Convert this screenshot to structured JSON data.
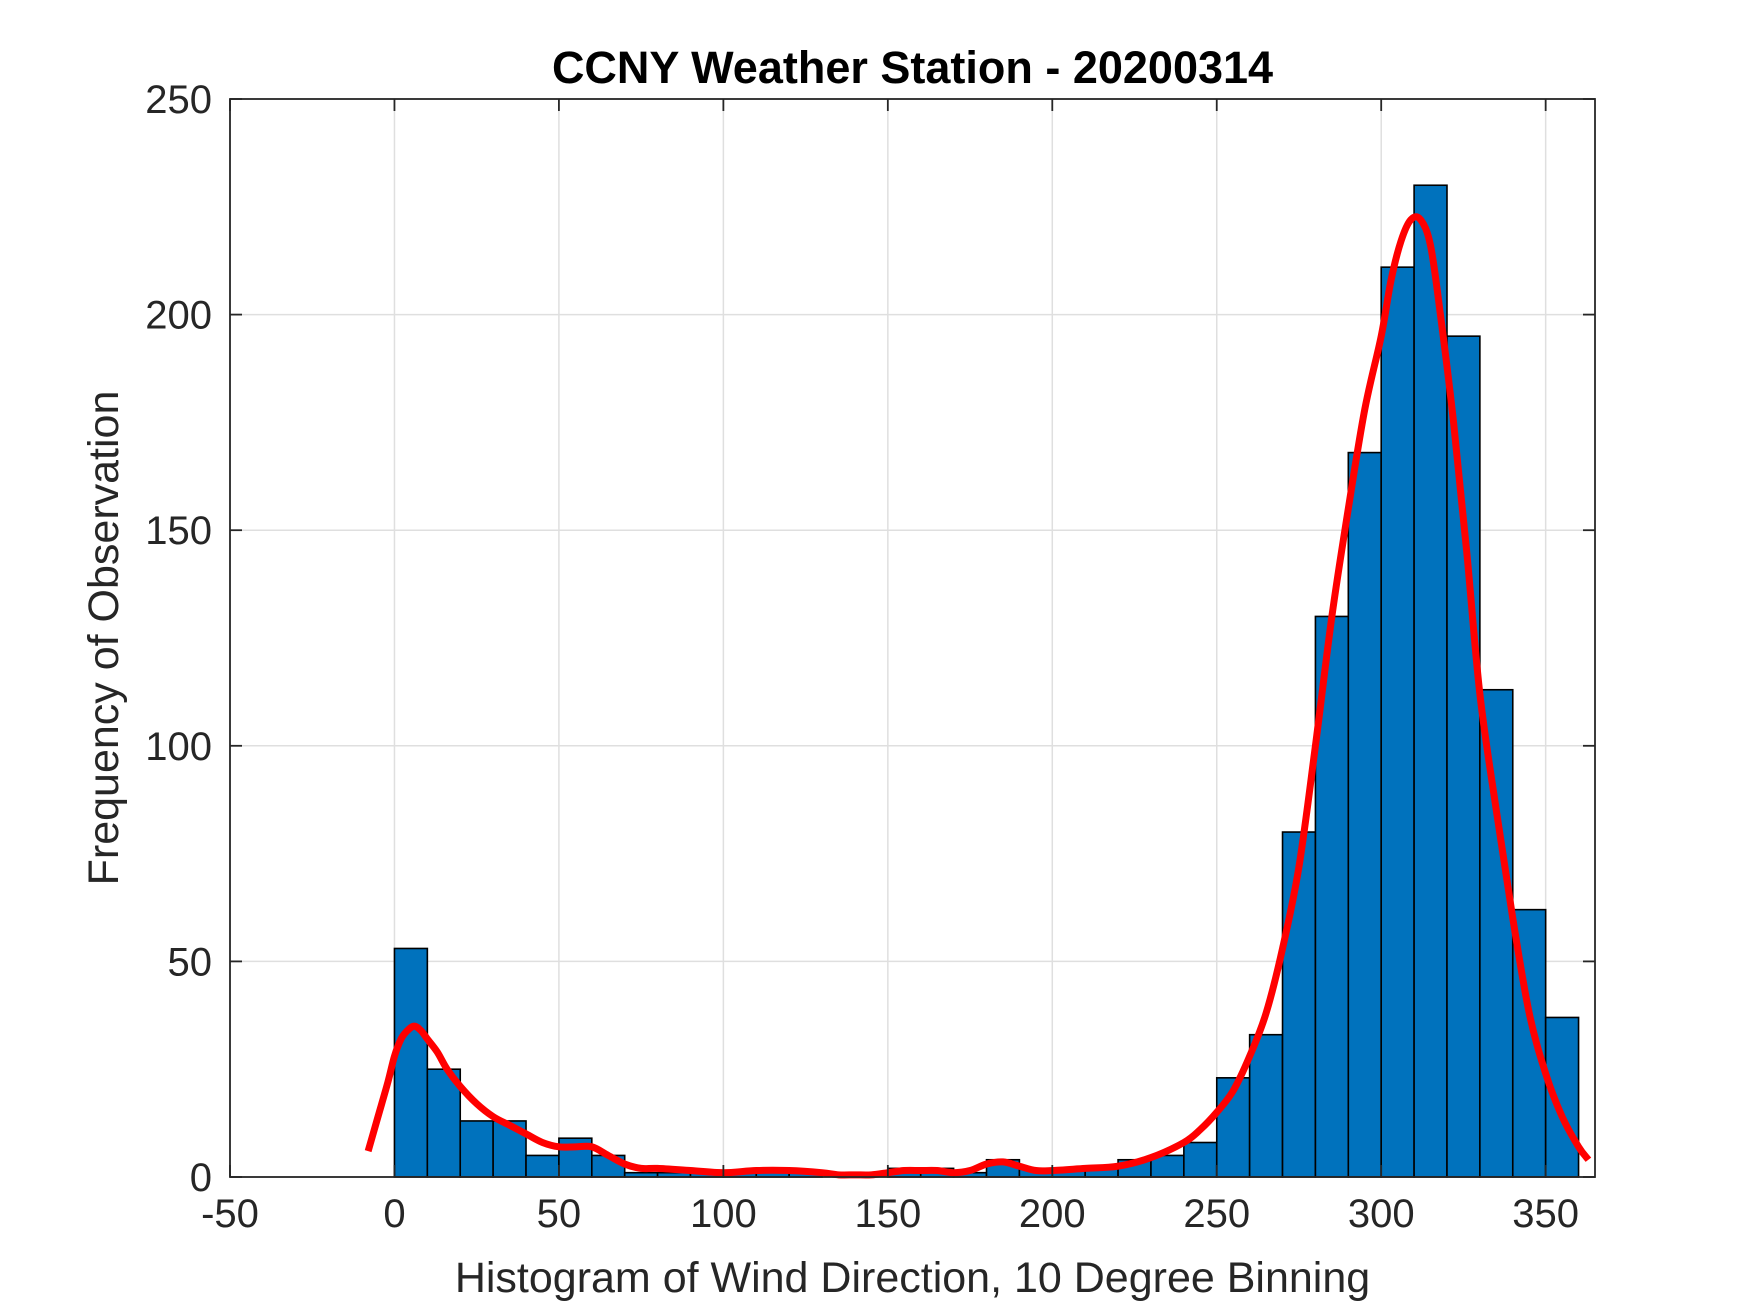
{
  "chart_data": {
    "type": "bar",
    "title": "CCNY Weather Station - 20200314",
    "xlabel": "Histogram of Wind Direction, 10 Degree Binning",
    "ylabel": "Frequency of Observation",
    "xlim": [
      -50,
      365
    ],
    "ylim": [
      0,
      250
    ],
    "xticks": [
      -50,
      0,
      50,
      100,
      150,
      200,
      250,
      300,
      350
    ],
    "yticks": [
      0,
      50,
      100,
      150,
      200,
      250
    ],
    "grid": true,
    "bin_width": 10,
    "bin_edges": [
      0,
      10,
      20,
      30,
      40,
      50,
      60,
      70,
      80,
      90,
      100,
      110,
      120,
      130,
      140,
      150,
      160,
      170,
      180,
      190,
      200,
      210,
      220,
      230,
      240,
      250,
      260,
      270,
      280,
      290,
      300,
      310,
      320,
      330,
      340,
      350,
      360
    ],
    "values": [
      53,
      25,
      13,
      13,
      5,
      9,
      5,
      1,
      1,
      1,
      1,
      2,
      1,
      0,
      0,
      2,
      2,
      1,
      4,
      2,
      2,
      2,
      4,
      5,
      8,
      23,
      33,
      80,
      130,
      168,
      211,
      230,
      195,
      113,
      62,
      37
    ],
    "series": [
      {
        "kind": "histogram",
        "color": "#0072BD",
        "edge_color": "#000000"
      },
      {
        "kind": "line",
        "color": "#FF0000",
        "x": [
          -8,
          -5,
          -2,
          0,
          2,
          4,
          6,
          8,
          10,
          13,
          16,
          20,
          25,
          30,
          35,
          40,
          45,
          50,
          55,
          60,
          65,
          70,
          75,
          80,
          90,
          100,
          110,
          120,
          130,
          135,
          140,
          145,
          150,
          155,
          160,
          165,
          170,
          175,
          180,
          185,
          190,
          195,
          200,
          210,
          220,
          230,
          240,
          245,
          250,
          255,
          260,
          265,
          270,
          275,
          280,
          285,
          290,
          295,
          300,
          303,
          306,
          309,
          312,
          315,
          318,
          322,
          326,
          330,
          335,
          340,
          345,
          350,
          355,
          360,
          363
        ],
        "y": [
          6,
          14,
          22,
          28,
          32,
          34,
          35,
          34,
          32,
          29,
          25,
          21,
          17,
          14,
          12,
          10,
          8,
          7,
          7,
          7,
          5,
          3,
          2,
          2,
          1.5,
          1,
          1.5,
          1.5,
          1,
          0.5,
          0.5,
          0.5,
          1,
          1.5,
          1.5,
          1.5,
          1,
          1.5,
          3,
          3.5,
          2.5,
          1.5,
          1.5,
          2,
          2.5,
          4.5,
          8,
          11,
          15,
          20,
          28,
          38,
          53,
          72,
          100,
          130,
          155,
          178,
          195,
          208,
          217,
          222,
          222,
          216,
          200,
          175,
          145,
          112,
          85,
          60,
          38,
          24,
          14,
          7,
          4
        ]
      }
    ]
  }
}
